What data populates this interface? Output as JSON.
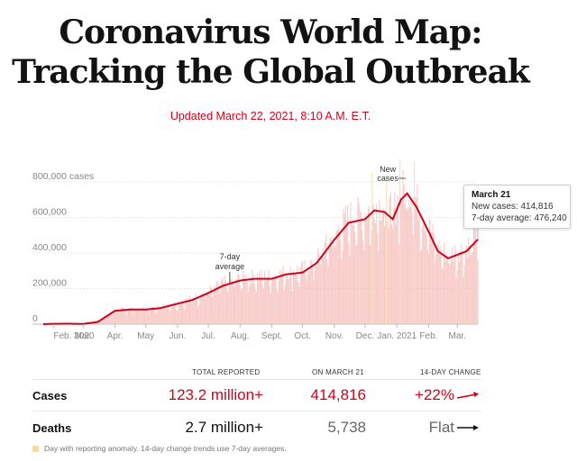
{
  "header": {
    "title_line1": "Coronavirus World Map:",
    "title_line2": "Tracking the Global Outbreak",
    "updated": "Updated March 22, 2021, 8:10 A.M. E.T."
  },
  "colors": {
    "accent": "#d0021b",
    "bar": "#f7c3c0",
    "anomaly": "#f7dca0",
    "axis_text": "#999999"
  },
  "chart_data": {
    "type": "area",
    "y_tick_labels": [
      "800,000 cases",
      "600,000",
      "400,000",
      "200,000",
      "0"
    ],
    "y_ticks": [
      800000,
      600000,
      400000,
      200000,
      0
    ],
    "ylim": [
      0,
      820000
    ],
    "x_tick_labels": [
      "Feb. 2020",
      "Mar.",
      "Apr.",
      "May",
      "Jun.",
      "Jul.",
      "Aug.",
      "Sept.",
      "Oct.",
      "Nov.",
      "Dec.",
      "Jan. 2021",
      "Feb.",
      "Mar."
    ],
    "x_tick_positions": [
      "2020-02-01",
      "2020-03-01",
      "2020-04-01",
      "2020-05-01",
      "2020-06-01",
      "2020-07-01",
      "2020-08-01",
      "2020-09-01",
      "2020-10-01",
      "2020-11-01",
      "2020-12-01",
      "2021-01-01",
      "2021-02-01",
      "2021-03-01"
    ],
    "series": [
      {
        "name": "7-day average",
        "points": [
          [
            "2020-01-22",
            0
          ],
          [
            "2020-02-01",
            2000
          ],
          [
            "2020-02-15",
            2500
          ],
          [
            "2020-03-01",
            1500
          ],
          [
            "2020-03-15",
            12000
          ],
          [
            "2020-04-01",
            75000
          ],
          [
            "2020-04-15",
            82000
          ],
          [
            "2020-05-01",
            82000
          ],
          [
            "2020-05-15",
            90000
          ],
          [
            "2020-06-01",
            115000
          ],
          [
            "2020-06-15",
            135000
          ],
          [
            "2020-07-01",
            175000
          ],
          [
            "2020-07-15",
            215000
          ],
          [
            "2020-08-01",
            245000
          ],
          [
            "2020-08-15",
            255000
          ],
          [
            "2020-09-01",
            255000
          ],
          [
            "2020-09-15",
            280000
          ],
          [
            "2020-10-01",
            290000
          ],
          [
            "2020-10-15",
            345000
          ],
          [
            "2020-11-01",
            475000
          ],
          [
            "2020-11-15",
            570000
          ],
          [
            "2020-12-01",
            590000
          ],
          [
            "2020-12-10",
            640000
          ],
          [
            "2020-12-20",
            630000
          ],
          [
            "2020-12-28",
            590000
          ],
          [
            "2021-01-05",
            700000
          ],
          [
            "2021-01-11",
            735000
          ],
          [
            "2021-01-20",
            660000
          ],
          [
            "2021-02-01",
            520000
          ],
          [
            "2021-02-10",
            410000
          ],
          [
            "2021-02-20",
            370000
          ],
          [
            "2021-03-01",
            390000
          ],
          [
            "2021-03-10",
            410000
          ],
          [
            "2021-03-21",
            476240
          ]
        ]
      }
    ],
    "daily_new_cases_approx": [
      [
        "2020-04-01",
        80000
      ],
      [
        "2020-07-01",
        190000
      ],
      [
        "2020-09-01",
        275000
      ],
      [
        "2020-11-01",
        520000
      ],
      [
        "2020-12-10",
        700000
      ],
      [
        "2021-01-08",
        845000
      ],
      [
        "2021-02-01",
        540000
      ],
      [
        "2021-03-21",
        414816
      ]
    ],
    "annotations": {
      "avg_label_line1": "7-day",
      "avg_label_line2": "average",
      "avg_label_date": "2020-07-22",
      "new_label_line1": "New",
      "new_label_line2": "cases",
      "new_label_date": "2021-01-08"
    }
  },
  "tooltip": {
    "date": "March 21",
    "new_cases": "New cases: 414,816",
    "avg": "7-day average: 476,240"
  },
  "stats": {
    "col_total": "TOTAL REPORTED",
    "col_day": "ON MARCH 21",
    "col_change": "14-DAY CHANGE",
    "rows": [
      {
        "label": "Cases",
        "total": "123.2 million+",
        "day": "414,816",
        "change": "+22%"
      },
      {
        "label": "Deaths",
        "total": "2.7 million+",
        "day": "5,738",
        "change": "Flat"
      }
    ]
  },
  "footnote": "Day with reporting anomaly. 14-day change trends use 7-day averages."
}
